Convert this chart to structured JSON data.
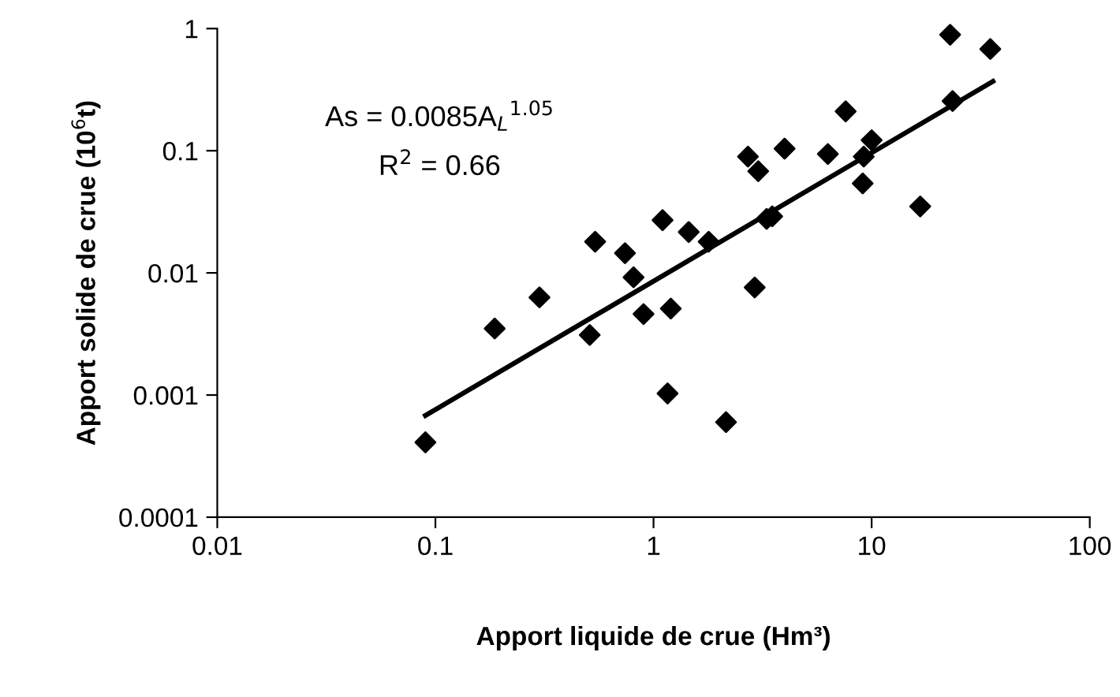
{
  "chart_data": {
    "type": "scatter",
    "xlabel": "Apport liquide de crue (Hm³)",
    "ylabel": "Apport solide de crue (10$^{6}$t)",
    "log": "xy",
    "xlim": [
      0.01,
      100
    ],
    "ylim": [
      0.0001,
      1
    ],
    "xticks": [
      0.01,
      0.1,
      1,
      10,
      100
    ],
    "yticks": [
      0.0001,
      0.001,
      0.01,
      0.1,
      1
    ],
    "grid": false,
    "legend": false,
    "marker": "diamond",
    "annotations": [
      "As = 0.0085A$_{L}$$^{1.05}$",
      "R$^{2}$ = 0.66"
    ],
    "series": [
      {
        "color": "#000000",
        "x": [
          0.09,
          0.187,
          0.3,
          0.54,
          0.51,
          0.74,
          0.81,
          0.9,
          1.1,
          1.2,
          1.16,
          1.45,
          1.79,
          2.15,
          2.71,
          2.91,
          3.02,
          3.3,
          3.5,
          3.99,
          6.3,
          7.6,
          9.2,
          9.1,
          10,
          16.7,
          22.9,
          23.5,
          35
        ],
        "values": [
          0.00041,
          0.0035,
          0.0063,
          0.018,
          0.0031,
          0.0145,
          0.0092,
          0.0046,
          0.027,
          0.0051,
          0.00103,
          0.0216,
          0.018,
          0.0006,
          0.0895,
          0.0076,
          0.068,
          0.0277,
          0.029,
          0.104,
          0.094,
          0.21,
          0.0895,
          0.054,
          0.122,
          0.035,
          0.89,
          0.255,
          0.68
        ]
      },
      {
        "type": "line",
        "color": "#000000",
        "marker": "none",
        "x": [
          0.09,
          36
        ],
        "values": [
          0.00068,
          0.37
        ]
      }
    ]
  }
}
